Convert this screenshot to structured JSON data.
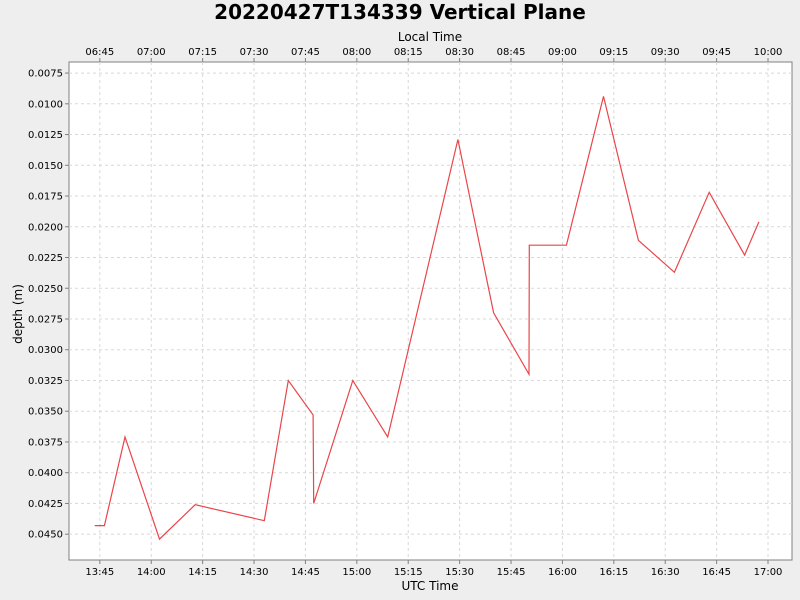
{
  "chart_data": {
    "type": "line",
    "title": "20220427T134339 Vertical Plane",
    "xlabel": "UTC Time",
    "x2label": "Local Time",
    "ylabel": "depth (m)",
    "y_inverted": true,
    "ylim": [
      0.0066,
      0.0471
    ],
    "xlim": [
      "13:36",
      "17:07"
    ],
    "grid": true,
    "x_ticks": [
      "13:45",
      "14:00",
      "14:15",
      "14:30",
      "14:45",
      "15:00",
      "15:15",
      "15:30",
      "15:45",
      "16:00",
      "16:15",
      "16:30",
      "16:45",
      "17:00"
    ],
    "x2_ticks": [
      "06:45",
      "07:00",
      "07:15",
      "07:30",
      "07:45",
      "08:00",
      "08:15",
      "08:30",
      "08:45",
      "09:00",
      "09:15",
      "09:30",
      "09:45",
      "10:00"
    ],
    "y_ticks": [
      "0.0075",
      "0.0100",
      "0.0125",
      "0.0150",
      "0.0175",
      "0.0200",
      "0.0225",
      "0.0250",
      "0.0275",
      "0.0300",
      "0.0325",
      "0.0350",
      "0.0375",
      "0.0400",
      "0.0425",
      "0.0450"
    ],
    "series": [
      {
        "color": "#e8464a",
        "x": [
          "13:43:30",
          "13:46:20",
          "13:52:20",
          "14:02:25",
          "14:12:50",
          "14:33:00",
          "14:40:00",
          "14:47:15",
          "14:47:25",
          "14:58:50",
          "15:09:00",
          "15:29:30",
          "15:39:55",
          "15:50:15",
          "15:50:20",
          "16:01:10",
          "16:12:00",
          "16:22:10",
          "16:32:40",
          "16:42:50",
          "16:53:10",
          "16:57:20"
        ],
        "y": [
          0.0443,
          0.0443,
          0.0371,
          0.0454,
          0.0426,
          0.0439,
          0.0325,
          0.0353,
          0.0425,
          0.0325,
          0.0371,
          0.0129,
          0.027,
          0.032,
          0.0215,
          0.0215,
          0.0094,
          0.0211,
          0.0237,
          0.0172,
          0.0223,
          0.0196
        ]
      }
    ]
  }
}
